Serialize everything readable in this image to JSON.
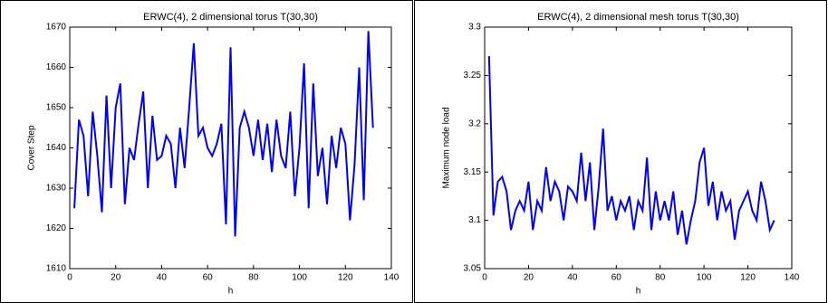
{
  "chart_data": [
    {
      "type": "line",
      "title": "ERWC(4), 2 dimensional torus T(30,30)",
      "x_label": "h",
      "y_label": "Cover Step",
      "x": [
        2,
        4,
        6,
        8,
        10,
        12,
        14,
        16,
        18,
        20,
        22,
        24,
        26,
        28,
        30,
        32,
        34,
        36,
        38,
        40,
        42,
        44,
        46,
        48,
        50,
        52,
        54,
        56,
        58,
        60,
        62,
        64,
        66,
        68,
        70,
        72,
        74,
        76,
        78,
        80,
        82,
        84,
        86,
        88,
        90,
        92,
        94,
        96,
        98,
        100,
        102,
        104,
        106,
        108,
        110,
        112,
        114,
        116,
        118,
        120,
        122,
        124,
        126,
        128,
        130,
        132
      ],
      "series": [
        {
          "name": "Cover Step",
          "color": "#0000ff",
          "values": [
            1625,
            1647,
            1643,
            1628,
            1649,
            1638,
            1624,
            1653,
            1630,
            1650,
            1656,
            1626,
            1640,
            1637,
            1646,
            1654,
            1630,
            1648,
            1637,
            1638,
            1643,
            1641,
            1630,
            1645,
            1635,
            1650,
            1666,
            1643,
            1645,
            1640,
            1638,
            1641,
            1646,
            1621,
            1665,
            1618,
            1645,
            1649,
            1645,
            1638,
            1647,
            1637,
            1646,
            1634,
            1647,
            1638,
            1635,
            1649,
            1628,
            1640,
            1661,
            1625,
            1656,
            1633,
            1640,
            1626,
            1643,
            1635,
            1645,
            1641,
            1622,
            1636,
            1660,
            1627,
            1669,
            1645
          ]
        }
      ],
      "xlim": [
        0,
        140
      ],
      "xticks": [
        0,
        20,
        40,
        60,
        80,
        100,
        120,
        140
      ],
      "ylim": [
        1610,
        1670
      ],
      "yticks": [
        1610,
        1620,
        1630,
        1640,
        1650,
        1660,
        1670
      ]
    },
    {
      "type": "line",
      "title": "ERWC(4), 2 dimensional mesh torus T(30,30)",
      "x_label": "h",
      "y_label": "Maximum node load",
      "x": [
        2,
        4,
        6,
        8,
        10,
        12,
        14,
        16,
        18,
        20,
        22,
        24,
        26,
        28,
        30,
        32,
        34,
        36,
        38,
        40,
        42,
        44,
        46,
        48,
        50,
        52,
        54,
        56,
        58,
        60,
        62,
        64,
        66,
        68,
        70,
        72,
        74,
        76,
        78,
        80,
        82,
        84,
        86,
        88,
        90,
        92,
        94,
        96,
        98,
        100,
        102,
        104,
        106,
        108,
        110,
        112,
        114,
        116,
        118,
        120,
        122,
        124,
        126,
        128,
        130,
        132
      ],
      "series": [
        {
          "name": "Maximum node load",
          "color": "#0000ff",
          "values": [
            3.27,
            3.105,
            3.14,
            3.145,
            3.13,
            3.09,
            3.11,
            3.12,
            3.11,
            3.14,
            3.09,
            3.12,
            3.11,
            3.155,
            3.12,
            3.14,
            3.13,
            3.1,
            3.135,
            3.13,
            3.12,
            3.17,
            3.12,
            3.16,
            3.09,
            3.135,
            3.195,
            3.11,
            3.125,
            3.1,
            3.12,
            3.11,
            3.125,
            3.09,
            3.12,
            3.11,
            3.165,
            3.09,
            3.13,
            3.1,
            3.12,
            3.1,
            3.13,
            3.085,
            3.11,
            3.075,
            3.1,
            3.12,
            3.16,
            3.175,
            3.115,
            3.14,
            3.1,
            3.13,
            3.11,
            3.12,
            3.08,
            3.11,
            3.12,
            3.13,
            3.11,
            3.1,
            3.14,
            3.12,
            3.09,
            3.1
          ]
        }
      ],
      "xlim": [
        0,
        140
      ],
      "xticks": [
        0,
        20,
        40,
        60,
        80,
        100,
        120,
        140
      ],
      "ylim": [
        3.05,
        3.3
      ],
      "yticks": [
        3.05,
        3.1,
        3.15,
        3.2,
        3.25,
        3.3
      ]
    }
  ]
}
